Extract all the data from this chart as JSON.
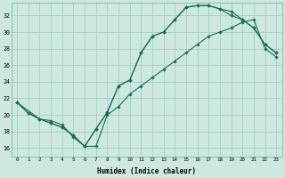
{
  "xlabel": "Humidex (Indice chaleur)",
  "bg_color": "#cce8e0",
  "grid_color": "#aaccbb",
  "line_color": "#1a6b5a",
  "xlim": [
    -0.5,
    23.5
  ],
  "ylim": [
    15.0,
    33.5
  ],
  "xticks": [
    0,
    1,
    2,
    3,
    4,
    5,
    6,
    7,
    8,
    9,
    10,
    11,
    12,
    13,
    14,
    15,
    16,
    17,
    18,
    19,
    20,
    21,
    22,
    23
  ],
  "yticks": [
    16,
    18,
    20,
    22,
    24,
    26,
    28,
    30,
    32
  ],
  "line1_x": [
    0,
    1,
    2,
    3,
    4,
    5,
    6,
    7,
    8,
    9,
    10,
    11,
    12,
    13,
    14,
    15,
    16,
    17,
    18,
    19,
    20,
    21,
    22,
    23
  ],
  "line1_y": [
    21.5,
    20.2,
    19.5,
    19.3,
    18.8,
    17.3,
    16.2,
    18.3,
    20.3,
    23.5,
    24.2,
    27.5,
    29.5,
    30.0,
    31.5,
    33.0,
    33.2,
    33.2,
    32.8,
    32.5,
    31.5,
    30.5,
    28.5,
    27.5
  ],
  "line2_x": [
    0,
    2,
    3,
    4,
    5,
    6,
    7,
    8,
    9,
    10,
    11,
    12,
    13,
    14,
    15,
    16,
    17,
    18,
    19,
    20,
    21,
    22,
    23
  ],
  "line2_y": [
    21.5,
    19.5,
    19.0,
    18.5,
    17.5,
    16.2,
    18.3,
    20.3,
    23.5,
    24.2,
    27.5,
    29.5,
    30.0,
    31.5,
    33.0,
    33.2,
    33.2,
    32.8,
    32.0,
    31.5,
    30.5,
    28.5,
    27.5
  ],
  "line3_x": [
    0,
    1,
    2,
    3,
    4,
    5,
    6,
    7,
    8,
    9,
    10,
    11,
    12,
    13,
    14,
    15,
    16,
    17,
    18,
    19,
    20,
    21,
    22,
    23
  ],
  "line3_y": [
    21.5,
    20.2,
    19.5,
    19.0,
    18.5,
    17.5,
    16.2,
    16.2,
    20.0,
    21.0,
    22.5,
    23.5,
    24.5,
    25.5,
    26.5,
    27.5,
    28.5,
    29.5,
    30.0,
    30.5,
    31.2,
    31.5,
    28.0,
    27.0
  ]
}
